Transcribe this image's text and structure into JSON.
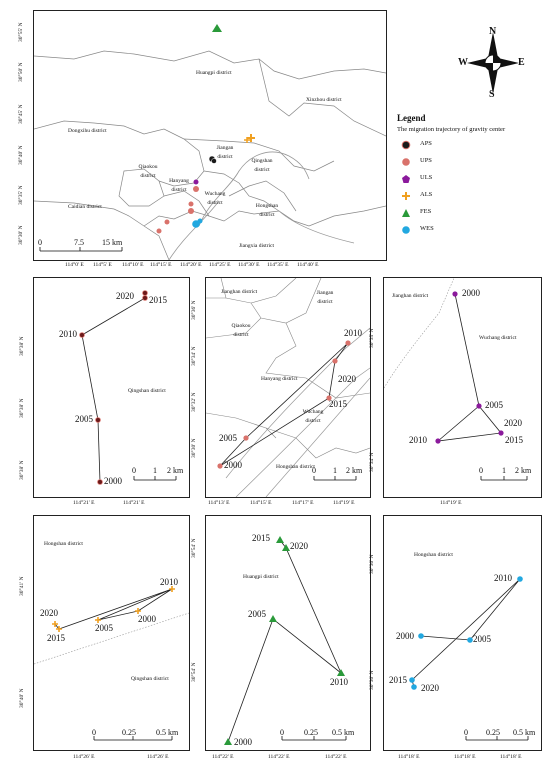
{
  "main_map": {
    "districts": {
      "huangpi": "Huangpi district",
      "xinzhou": "Xinzhou district",
      "dongxihu": "Dongxihu district",
      "jiangan": "Jiangan district",
      "qiaokou": "Qiaokou district",
      "qingshan": "Qingshan district",
      "hanyang": "Hanyang district",
      "wuchang": "Wuchang district",
      "caidian": "Caidian district",
      "hongshan": "Hongshan district",
      "jiangxia": "Jiangxia district"
    },
    "lat_ticks": [
      "30°55' N",
      "30°50' N",
      "30°45' N",
      "30°40' N",
      "30°35' N",
      "30°30' N"
    ],
    "lon_ticks": [
      "114°0' E",
      "114°5' E",
      "114°10' E",
      "114°15' E",
      "114°20' E",
      "114°25' E",
      "114°30' E",
      "114°35' E",
      "114°40' E"
    ],
    "scale_labels": [
      "0",
      "7.5",
      "15 km"
    ]
  },
  "compass": {
    "n": "N",
    "s": "S",
    "e": "E",
    "w": "W"
  },
  "legend": {
    "title": "Legend",
    "subtitle": "The migration trajectory of gravity center",
    "items": [
      {
        "label": "APS",
        "color": "#1a1a1a",
        "marker": "circle-dark"
      },
      {
        "label": "UPS",
        "color": "#d9726b",
        "marker": "circle"
      },
      {
        "label": "ULS",
        "color": "#8b1a9c",
        "marker": "pentagon"
      },
      {
        "label": "ALS",
        "color": "#f0a020",
        "marker": "plus"
      },
      {
        "label": "FES",
        "color": "#2a9a3a",
        "marker": "triangle"
      },
      {
        "label": "WES",
        "color": "#22a8e0",
        "marker": "circle"
      }
    ]
  },
  "panels": {
    "aps": {
      "district": "Qingshan district",
      "years": [
        "2020",
        "2015",
        "2010",
        "2005",
        "2000"
      ],
      "lat_ticks": [
        "30°38' N",
        "30°38' N",
        "30°38' N"
      ],
      "lon_ticks": [
        "114°21' E",
        "114°21' E"
      ],
      "scale": [
        "0",
        "1",
        "2 km"
      ]
    },
    "ups": {
      "districts": [
        "Jianghan district",
        "Jiangan district",
        "Qiaokou district",
        "Hanyang district",
        "Wuchang district",
        "Hongshan district"
      ],
      "years": [
        "2010",
        "2020",
        "2015",
        "2005",
        "2000"
      ],
      "lat_ticks": [
        "30°36' N",
        "30°34' N",
        "30°32' N",
        "30°30' N"
      ],
      "lon_ticks": [
        "114°13' E",
        "114°15' E",
        "114°17' E",
        "114°19' E"
      ],
      "scale": [
        "0",
        "1",
        "2 km"
      ]
    },
    "uls": {
      "districts": [
        "Jianghan district",
        "Wuchang district"
      ],
      "years": [
        "2000",
        "2005",
        "2020",
        "2010",
        "2015"
      ],
      "lat_ticks": [
        "30°35' N",
        "30°34' N"
      ],
      "lon_ticks": [
        "114°19' E"
      ],
      "scale": [
        "0",
        "1",
        "2 km"
      ]
    },
    "als": {
      "districts": [
        "Hongshan district",
        "Qingshan district"
      ],
      "years": [
        "2010",
        "2020",
        "2000",
        "2005",
        "2015"
      ],
      "lat_ticks": [
        "30°41' N",
        "30°40' N"
      ],
      "lon_ticks": [
        "114°26' E",
        "114°26' E"
      ],
      "scale": [
        "0",
        "0.25",
        "0.5 km"
      ]
    },
    "fes": {
      "district": "Huangpi district",
      "years": [
        "2015",
        "2020",
        "2005",
        "2010",
        "2000"
      ],
      "lat_ticks": [
        "30°54' N",
        "30°54' N"
      ],
      "lon_ticks": [
        "114°22' E",
        "114°22' E",
        "114°22' E"
      ],
      "scale": [
        "0",
        "0.25",
        "0.5 km"
      ]
    },
    "wes": {
      "district": "Hongshan district",
      "years": [
        "2010",
        "2000",
        "2005",
        "2015",
        "2020"
      ],
      "lat_ticks": [
        "30°30' N",
        "30°30' N"
      ],
      "lon_ticks": [
        "114°18' E",
        "114°18' E",
        "114°18' E"
      ],
      "scale": [
        "0",
        "0.25",
        "0.5 km"
      ]
    }
  }
}
